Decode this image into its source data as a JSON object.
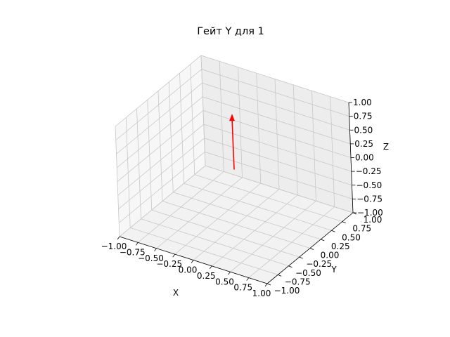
{
  "chart_data": {
    "type": "3d-vector",
    "title": "Гейт Y для 1",
    "xlabel": "X",
    "ylabel": "Y",
    "zlabel": "Z",
    "xlim": [
      -1,
      1
    ],
    "ylim": [
      -1,
      1
    ],
    "zlim": [
      -1,
      1
    ],
    "x_ticks": [
      "−1.00",
      "−0.75",
      "−0.50",
      "−0.25",
      "0.00",
      "0.25",
      "0.50",
      "0.75",
      "1.00"
    ],
    "y_ticks": [
      "−1.00",
      "−0.75",
      "−0.50",
      "−0.25",
      "0.00",
      "0.25",
      "0.50",
      "0.75",
      "1.00"
    ],
    "z_ticks": [
      "−1.00",
      "−0.75",
      "−0.50",
      "−0.25",
      "0.00",
      "0.25",
      "0.50",
      "0.75",
      "1.00"
    ],
    "vector": {
      "origin": [
        0,
        0,
        0
      ],
      "direction": [
        0,
        0,
        1
      ],
      "color": "#ff0000"
    },
    "grid": true,
    "pane_colors": {
      "floor": "#f2f2f2",
      "left_wall": "#f7f7f7",
      "back_wall": "#ededed"
    }
  }
}
